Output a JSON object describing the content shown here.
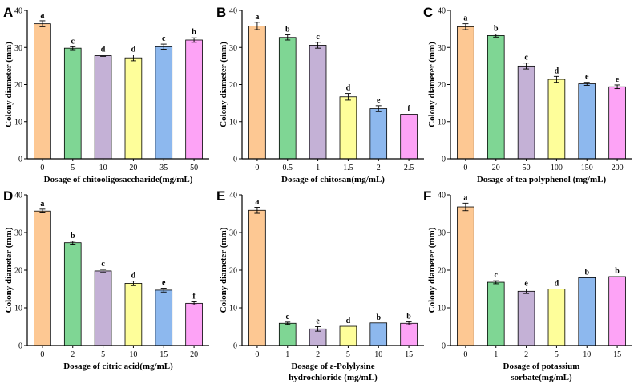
{
  "colors": [
    "#FDC893",
    "#7FD694",
    "#C4B1D6",
    "#FEFE9A",
    "#8DB8EE",
    "#FDA3F6"
  ],
  "chart_data": [
    {
      "panel": "A",
      "type": "bar",
      "categories": [
        "0",
        "5",
        "10",
        "20",
        "35",
        "50"
      ],
      "values": [
        36.4,
        29.8,
        27.8,
        27.2,
        30.2,
        32.0
      ],
      "errors": [
        0.8,
        0.4,
        0.2,
        0.8,
        0.7,
        0.6
      ],
      "letters": [
        "a",
        "c",
        "d",
        "d",
        "c",
        "b"
      ],
      "xlabel": [
        "Dosage of chitooligosaccharide(mg/mL)"
      ],
      "ylabel": "Colony diameter (mm)",
      "ylim": [
        0,
        40
      ],
      "yticks": [
        "0",
        "10",
        "20",
        "30",
        "40"
      ]
    },
    {
      "panel": "B",
      "type": "bar",
      "categories": [
        "0",
        "0.5",
        "1",
        "1.5",
        "2",
        "2.5"
      ],
      "values": [
        35.8,
        32.7,
        30.6,
        16.7,
        13.5,
        12.0
      ],
      "errors": [
        1.0,
        0.7,
        0.8,
        0.9,
        0.8,
        0.0
      ],
      "letters": [
        "a",
        "b",
        "c",
        "d",
        "e",
        "f"
      ],
      "xlabel": [
        "Dosage of chitosan(mg/mL)"
      ],
      "ylabel": "Colony diameter (mm)",
      "ylim": [
        0,
        40
      ],
      "yticks": [
        "0",
        "10",
        "20",
        "30",
        "40"
      ]
    },
    {
      "panel": "C",
      "type": "bar",
      "categories": [
        "0",
        "20",
        "50",
        "100",
        "150",
        "200"
      ],
      "values": [
        35.6,
        33.2,
        25.0,
        21.4,
        20.2,
        19.4
      ],
      "errors": [
        0.8,
        0.4,
        0.8,
        0.8,
        0.4,
        0.5
      ],
      "letters": [
        "a",
        "b",
        "c",
        "d",
        "e",
        "e"
      ],
      "xlabel": [
        "Dosage of tea polyphenol (mg/mL)"
      ],
      "ylabel": "Colony diameter (mm)",
      "ylim": [
        0,
        40
      ],
      "yticks": [
        "0",
        "10",
        "20",
        "30",
        "40"
      ]
    },
    {
      "panel": "D",
      "type": "bar",
      "categories": [
        "0",
        "2",
        "5",
        "10",
        "15",
        "20"
      ],
      "values": [
        35.7,
        27.3,
        19.8,
        16.5,
        14.7,
        11.2
      ],
      "errors": [
        0.5,
        0.4,
        0.4,
        0.6,
        0.5,
        0.4
      ],
      "letters": [
        "a",
        "b",
        "c",
        "d",
        "e",
        "f"
      ],
      "xlabel": [
        "Dosage of citric acid(mg/mL)"
      ],
      "ylabel": "Colony diameter (mm)",
      "ylim": [
        0,
        40
      ],
      "yticks": [
        "0",
        "10",
        "20",
        "30",
        "40"
      ]
    },
    {
      "panel": "E",
      "type": "bar",
      "categories": [
        "0",
        "1",
        "2",
        "5",
        "10",
        "15"
      ],
      "values": [
        35.9,
        5.9,
        4.4,
        5.1,
        6.0,
        5.9
      ],
      "errors": [
        0.8,
        0.3,
        0.6,
        0.0,
        0.0,
        0.4
      ],
      "letters": [
        "a",
        "c",
        "e",
        "d",
        "b",
        "b"
      ],
      "xlabel": [
        "Dosage of ε-Polylysine",
        "hydrochloride (mg/mL)"
      ],
      "ylabel": "Colony diameter (mm)",
      "ylim": [
        0,
        40
      ],
      "yticks": [
        "0",
        "10",
        "20",
        "30",
        "40"
      ]
    },
    {
      "panel": "F",
      "type": "bar",
      "categories": [
        "0",
        "1",
        "2",
        "5",
        "10",
        "15"
      ],
      "values": [
        36.8,
        16.8,
        14.4,
        15.0,
        18.0,
        18.3
      ],
      "errors": [
        1.0,
        0.4,
        0.6,
        0.0,
        0.0,
        0.0
      ],
      "letters": [
        "a",
        "c",
        "e",
        "d",
        "b",
        "b"
      ],
      "xlabel": [
        "Dosage of potassium",
        "sorbate(mg/mL)"
      ],
      "ylabel": "Colony diameter (mm)",
      "ylim": [
        0,
        40
      ],
      "yticks": [
        "0",
        "10",
        "20",
        "30",
        "40"
      ]
    }
  ]
}
